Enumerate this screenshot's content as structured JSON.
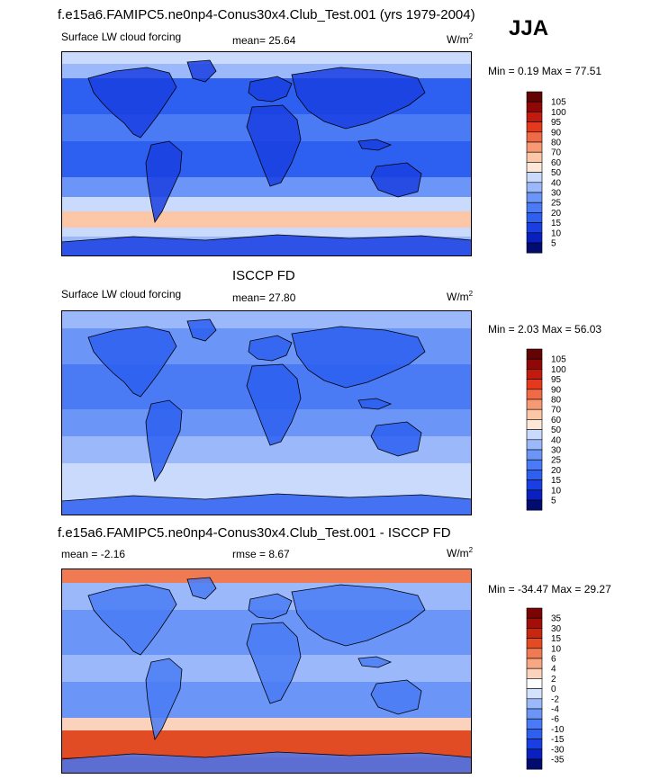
{
  "header": {
    "title": "f.e15a6.FAMIPC5.ne0np4-Conus30x4.Club_Test.001 (yrs 1979-2004)",
    "season": "JJA"
  },
  "panels": [
    {
      "id": "model",
      "title": "",
      "left_label": "Surface LW cloud forcing",
      "center_label": "mean=  25.64",
      "units_base": "W/m",
      "units_exp": "2",
      "stats": "Min =   0.19 Max =  77.51"
    },
    {
      "id": "obs",
      "title": "ISCCP FD",
      "left_label": "Surface LW cloud forcing",
      "center_label": "mean=  27.80",
      "units_base": "W/m",
      "units_exp": "2",
      "stats": "Min =   2.03 Max =  56.03"
    },
    {
      "id": "diff",
      "title": "f.e15a6.FAMIPC5.ne0np4-Conus30x4.Club_Test.001 - ISCCP FD",
      "left_label": "mean =  -2.16",
      "center_label": "rmse =   8.67",
      "units_base": "W/m",
      "units_exp": "2",
      "stats": "Min = -34.47 Max =  29.27"
    }
  ],
  "chart_data": [
    {
      "type": "heatmap",
      "title": "Surface LW cloud forcing",
      "units": "W/m2",
      "mean": 25.64,
      "min": 0.19,
      "max": 77.51,
      "colorbar_levels": [
        "5",
        "10",
        "15",
        "20",
        "25",
        "30",
        "40",
        "50",
        "60",
        "70",
        "80",
        "90",
        "95",
        "100",
        "105"
      ],
      "colorbar_colors": [
        "#020b6e",
        "#0a1fc0",
        "#1a3fe0",
        "#2d5ff0",
        "#4a7bf5",
        "#6b95f7",
        "#9bb8fa",
        "#c9dafc",
        "#fde8d8",
        "#fbc7a6",
        "#f79a74",
        "#f06a45",
        "#e33a1e",
        "#c21a0e",
        "#8f0808",
        "#620404"
      ]
    },
    {
      "type": "heatmap",
      "title": "Surface LW cloud forcing",
      "units": "W/m2",
      "mean": 27.8,
      "min": 2.03,
      "max": 56.03,
      "colorbar_levels": [
        "5",
        "10",
        "15",
        "20",
        "25",
        "30",
        "40",
        "50",
        "60",
        "70",
        "80",
        "90",
        "95",
        "100",
        "105"
      ],
      "colorbar_colors": [
        "#020b6e",
        "#0a1fc0",
        "#1a3fe0",
        "#2d5ff0",
        "#4a7bf5",
        "#6b95f7",
        "#9bb8fa",
        "#c9dafc",
        "#fde8d8",
        "#fbc7a6",
        "#f79a74",
        "#f06a45",
        "#e33a1e",
        "#c21a0e",
        "#8f0808",
        "#620404"
      ]
    },
    {
      "type": "heatmap",
      "title": "f.e15a6.FAMIPC5.ne0np4-Conus30x4.Club_Test.001 - ISCCP FD",
      "units": "W/m2",
      "mean": -2.16,
      "rmse": 8.67,
      "min": -34.47,
      "max": 29.27,
      "colorbar_levels": [
        "-35",
        "-30",
        "-15",
        "-10",
        "-6",
        "-4",
        "-2",
        "0",
        "2",
        "4",
        "6",
        "10",
        "15",
        "30",
        "35"
      ],
      "colorbar_colors": [
        "#020b6e",
        "#0a1fc0",
        "#1a3fe0",
        "#2d5ff0",
        "#4a7bf5",
        "#6b95f7",
        "#9bb8fa",
        "#d4e2fb",
        "#ffffff",
        "#fbd2bb",
        "#f8a683",
        "#f07a52",
        "#e24c25",
        "#c8260f",
        "#a10f08",
        "#7a0404"
      ]
    }
  ]
}
